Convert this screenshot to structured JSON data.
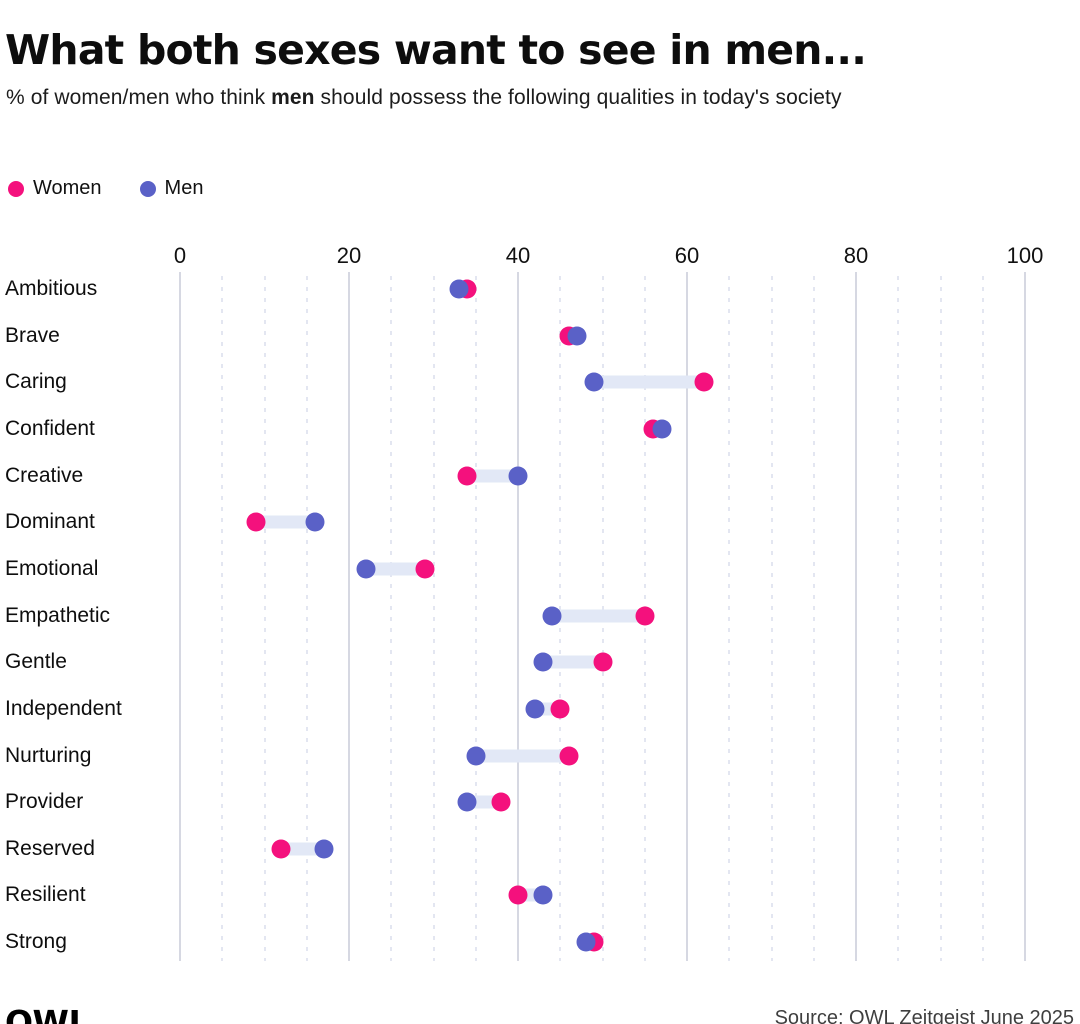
{
  "header": {
    "title": "What both sexes want to see in men...",
    "subtitle_prefix": "% of women/men who think ",
    "subtitle_bold": "men",
    "subtitle_suffix": " should possess the following qualities in today's society"
  },
  "legend": {
    "items": [
      {
        "label": "Women",
        "color": "#f4117d"
      },
      {
        "label": "Men",
        "color": "#5a61c7"
      }
    ]
  },
  "chart_data": {
    "type": "dumbbell",
    "title": "What both sexes want to see in men...",
    "categories": [
      "Ambitious",
      "Brave",
      "Caring",
      "Confident",
      "Creative",
      "Dominant",
      "Emotional",
      "Empathetic",
      "Gentle",
      "Independent",
      "Nurturing",
      "Provider",
      "Reserved",
      "Resilient",
      "Strong"
    ],
    "series": [
      {
        "name": "Women",
        "color": "#f4117d",
        "values": [
          34,
          46,
          62,
          56,
          34,
          9,
          29,
          55,
          50,
          45,
          46,
          38,
          12,
          40,
          49
        ]
      },
      {
        "name": "Men",
        "color": "#5a61c7",
        "values": [
          33,
          47,
          49,
          57,
          40,
          16,
          22,
          44,
          43,
          42,
          35,
          34,
          17,
          43,
          48
        ]
      }
    ],
    "x_axis": {
      "range": [
        0,
        100
      ],
      "ticks": [
        0,
        20,
        40,
        60,
        80,
        100
      ],
      "minor_step": 5
    },
    "grid": {
      "major_color": "#d6d8e2",
      "minor_color": "#e3e6f1",
      "minor_dashed": true
    },
    "connector_color": "#e2e8f6",
    "legend_position": "top-left"
  },
  "footer": {
    "logo": "OWL",
    "source": "Source: OWL Zeitgeist June 2025"
  }
}
